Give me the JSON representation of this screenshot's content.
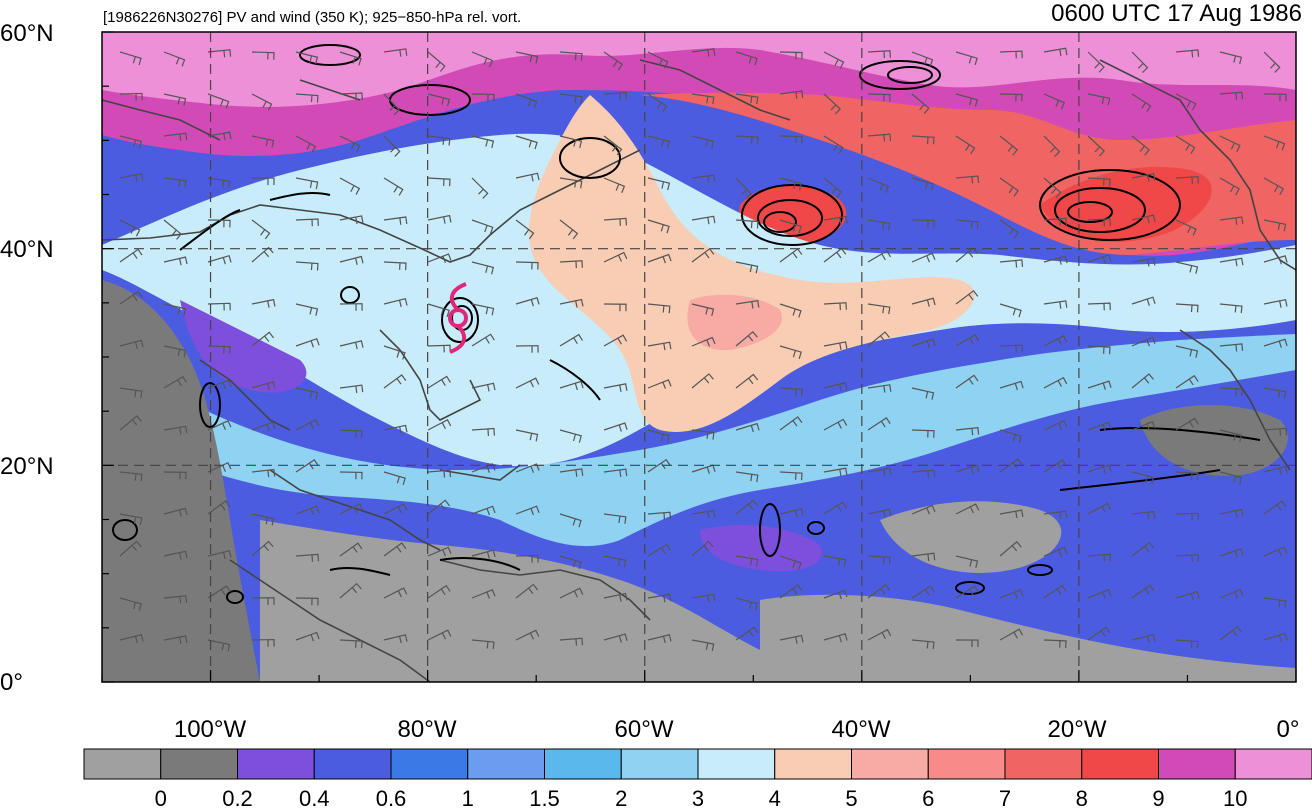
{
  "header": {
    "case_label": "[1986226N30276] PV and wind (350 K); 925−850-hPa rel. vort.",
    "valid_time": "0600 UTC 17 Aug 1986"
  },
  "map": {
    "lat_labels": [
      "60°N",
      "40°N",
      "20°N",
      "0°"
    ],
    "lat_values": [
      60,
      40,
      20,
      0
    ],
    "lon_labels": [
      "100°W",
      "80°W",
      "60°W",
      "40°W",
      "20°W",
      "0°"
    ],
    "lon_values": [
      -100,
      -80,
      -60,
      -40,
      -20,
      0
    ],
    "lon_range": [
      -110,
      0
    ],
    "lat_range": [
      0,
      60
    ],
    "gridlines": "dashed",
    "storm_symbol_color": "#e0287a"
  },
  "colorbar": {
    "tick_labels": [
      "0",
      "0.2",
      "0.4",
      "0.6",
      "1",
      "1.5",
      "2",
      "3",
      "4",
      "5",
      "6",
      "7",
      "8",
      "9",
      "10"
    ],
    "colors": [
      "#a0a0a0",
      "#7a7a7a",
      "#7d4fdc",
      "#4c5ce0",
      "#3a7ae6",
      "#6a9cf0",
      "#5ab8ec",
      "#8fd2f2",
      "#c8ecfa",
      "#f8cdb4",
      "#f8aaa4",
      "#f88a8a",
      "#f06464",
      "#f04848",
      "#d24ab6",
      "#ee90d8"
    ]
  }
}
